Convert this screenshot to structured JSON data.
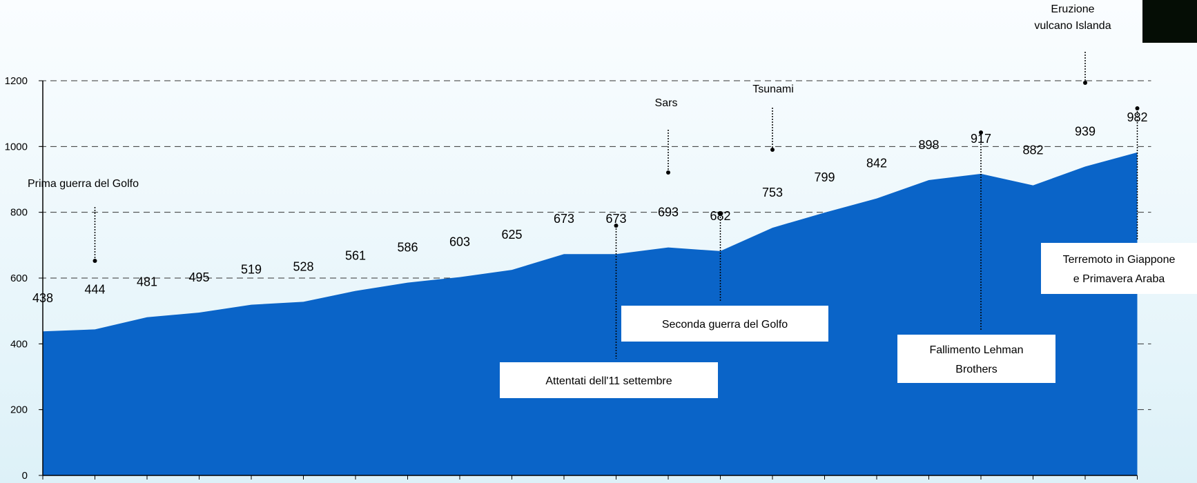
{
  "chart_data": {
    "type": "area",
    "title": "",
    "xlabel": "",
    "ylabel": "",
    "ylim": [
      0,
      1200
    ],
    "yticks": [
      0,
      200,
      400,
      600,
      800,
      1000,
      1200
    ],
    "grid": "horizontal-dashed",
    "fill_color": "#0a64c8",
    "values": [
      438,
      444,
      481,
      495,
      519,
      528,
      561,
      586,
      603,
      625,
      673,
      673,
      693,
      682,
      753,
      799,
      842,
      898,
      917,
      882,
      939,
      982
    ],
    "value_labels": [
      "438",
      "444",
      "481",
      "495",
      "519",
      "528",
      "561",
      "586",
      "603",
      "625",
      "673",
      "673",
      "693",
      "682",
      "753",
      "799",
      "842",
      "898",
      "917",
      "882",
      "939",
      "982"
    ],
    "annotations": [
      {
        "lines": [
          "Prima guerra del Golfo"
        ],
        "index": 1,
        "boxed": false
      },
      {
        "lines": [
          "Attentati dell'11 settembre"
        ],
        "index": 11,
        "boxed": true
      },
      {
        "lines": [
          "Sars"
        ],
        "index": 12,
        "boxed": false
      },
      {
        "lines": [
          "Seconda guerra del Golfo"
        ],
        "index": 13,
        "boxed": true
      },
      {
        "lines": [
          "Tsunami"
        ],
        "index": 14,
        "boxed": false
      },
      {
        "lines": [
          "Fallimento Lehman",
          "Brothers"
        ],
        "index": 18,
        "boxed": true
      },
      {
        "lines": [
          "Eruzione",
          "vulcano Islanda"
        ],
        "index": 20,
        "boxed": false
      },
      {
        "lines": [
          "Terremoto in Giappone",
          "e Primavera Araba"
        ],
        "index": 21,
        "boxed": true
      }
    ]
  }
}
